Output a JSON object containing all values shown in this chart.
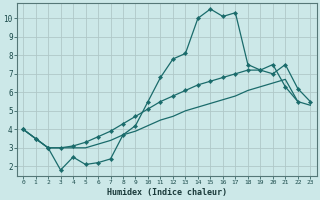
{
  "xlabel": "Humidex (Indice chaleur)",
  "bg_color": "#cce8e8",
  "grid_color_major": "#b8d4d4",
  "grid_color_minor": "#d4e8e8",
  "line_color": "#1a6b6b",
  "line1_x": [
    0,
    1,
    2,
    3,
    4,
    5,
    6,
    7,
    8,
    9,
    10,
    11,
    12,
    13,
    14,
    15,
    16,
    17,
    18,
    19,
    20,
    21,
    22,
    23
  ],
  "line1_y": [
    4.0,
    3.5,
    3.0,
    1.8,
    2.5,
    2.1,
    2.2,
    2.4,
    3.7,
    4.2,
    5.5,
    6.8,
    7.8,
    8.1,
    10.0,
    10.5,
    10.1,
    10.3,
    7.5,
    7.2,
    7.5,
    6.3,
    5.5,
    null
  ],
  "line2_x": [
    0,
    1,
    2,
    3,
    4,
    5,
    6,
    7,
    8,
    9,
    10,
    11,
    12,
    13,
    14,
    15,
    16,
    17,
    18,
    19,
    20,
    21,
    22,
    23
  ],
  "line2_y": [
    4.0,
    3.5,
    3.0,
    3.0,
    3.1,
    3.3,
    3.6,
    3.9,
    4.3,
    4.7,
    5.1,
    5.5,
    5.8,
    6.1,
    6.4,
    6.6,
    6.8,
    7.0,
    7.2,
    7.2,
    7.0,
    7.5,
    6.2,
    5.5
  ],
  "line3_x": [
    0,
    1,
    2,
    3,
    4,
    5,
    6,
    7,
    8,
    9,
    10,
    11,
    12,
    13,
    14,
    15,
    16,
    17,
    18,
    19,
    20,
    21,
    22,
    23
  ],
  "line3_y": [
    4.0,
    3.5,
    3.0,
    3.0,
    3.0,
    3.0,
    3.2,
    3.4,
    3.7,
    3.9,
    4.2,
    4.5,
    4.7,
    5.0,
    5.2,
    5.4,
    5.6,
    5.8,
    6.1,
    6.3,
    6.5,
    6.7,
    5.5,
    5.3
  ],
  "yticks": [
    2,
    3,
    4,
    5,
    6,
    7,
    8,
    9,
    10
  ],
  "xticks": [
    0,
    1,
    2,
    3,
    4,
    5,
    6,
    7,
    8,
    9,
    10,
    11,
    12,
    13,
    14,
    15,
    16,
    17,
    18,
    19,
    20,
    21,
    22,
    23
  ],
  "xlim": [
    -0.5,
    23.5
  ],
  "ylim": [
    1.5,
    10.8
  ]
}
